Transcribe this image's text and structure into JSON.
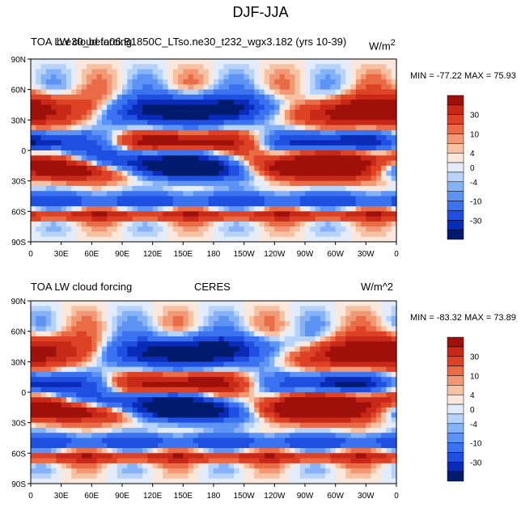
{
  "chart_data": {
    "type": "heatmap",
    "title": "DJF-JJA",
    "colors": {
      "levels": [
        "#001a6e",
        "#0a2bb8",
        "#1f4fe0",
        "#3a72f0",
        "#5d93f5",
        "#86b3f8",
        "#b7d3f9",
        "#e2ecfb",
        "#fbe7dc",
        "#f7c2a3",
        "#f29874",
        "#ea6c47",
        "#dd4226",
        "#c72817",
        "#9e1009"
      ]
    },
    "lon_ticks": [
      "0",
      "30E",
      "60E",
      "90E",
      "120E",
      "150E",
      "180",
      "150W",
      "120W",
      "90W",
      "60W",
      "30W",
      "0"
    ],
    "lat_ticks": [
      "90N",
      "60N",
      "30N",
      "0",
      "30S",
      "60S",
      "90S"
    ],
    "colorbar_labels": [
      "30",
      "10",
      "4",
      "0",
      "-4",
      "-10",
      "-30"
    ],
    "panels": [
      {
        "left_label": "TOA LW cloud forcing",
        "center_label": "b.e30_beta06.B1850C_LTso.ne30_t232_wgx3.182 (yrs 10-39)",
        "right_label": "W/m",
        "right_label_sup": "2",
        "stats": "MIN = -77.22 MAX =  75.93",
        "min": -77.22,
        "max": 75.93
      },
      {
        "left_label": "TOA LW cloud forcing",
        "center_label": "CERES",
        "right_label": "W/m^2",
        "right_label_sup": "",
        "stats": "MIN = -83.32 MAX =  73.89",
        "min": -83.32,
        "max": 73.89
      }
    ]
  }
}
